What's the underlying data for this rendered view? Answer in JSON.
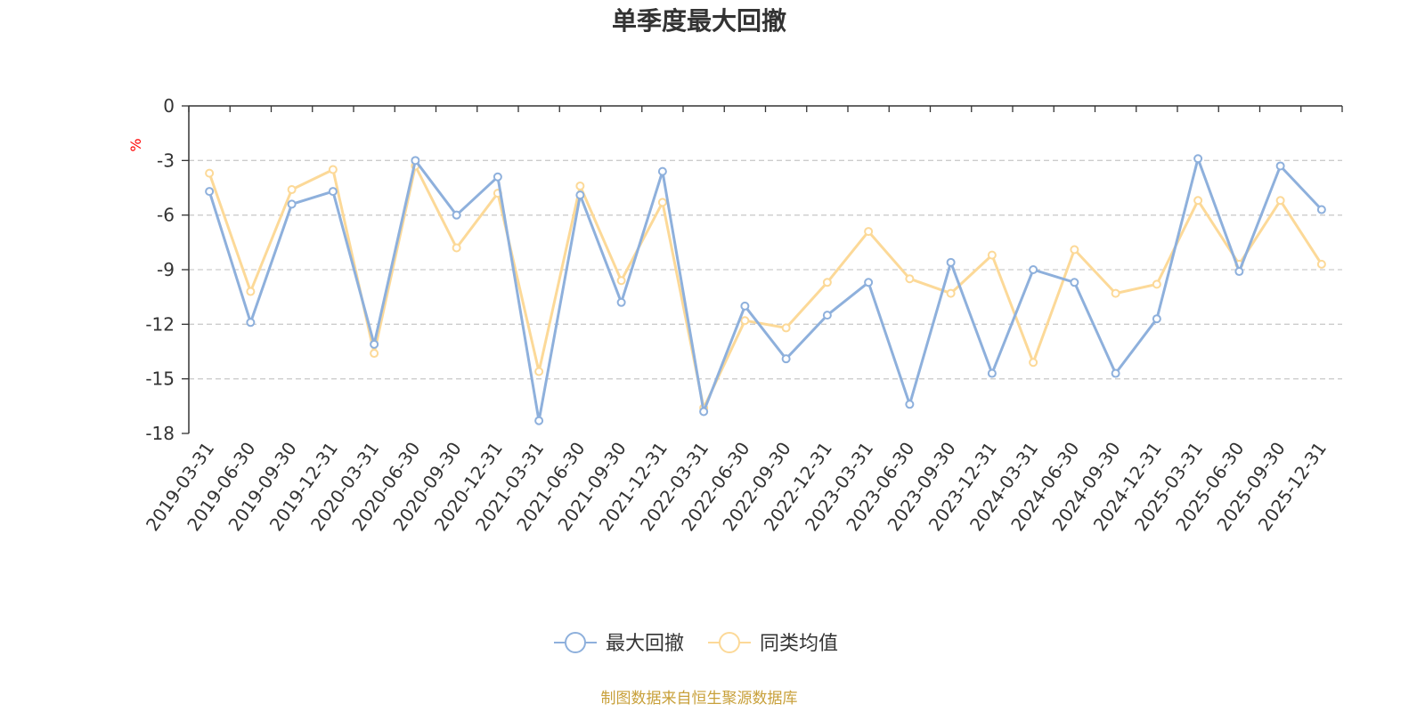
{
  "chart_data": {
    "type": "line",
    "title": "单季度最大回撤",
    "ylabel": "%",
    "ylim": [
      -18,
      0
    ],
    "yticks": [
      0,
      -3,
      -6,
      -9,
      -12,
      -15,
      -18
    ],
    "grid": true,
    "legend_position": "bottom-center",
    "categories": [
      "2019-03-31",
      "2019-06-30",
      "2019-09-30",
      "2019-12-31",
      "2020-03-31",
      "2020-06-30",
      "2020-09-30",
      "2020-12-31",
      "2021-03-31",
      "2021-06-30",
      "2021-09-30",
      "2021-12-31",
      "2022-03-31",
      "2022-06-30",
      "2022-09-30",
      "2022-12-31",
      "2023-03-31",
      "2023-06-30",
      "2023-09-30",
      "2023-12-31",
      "2024-03-31",
      "2024-06-30",
      "2024-09-30",
      "2024-12-31",
      "2025-03-31",
      "2025-06-30",
      "2025-09-30",
      "2025-12-31"
    ],
    "series": [
      {
        "name": "最大回撤",
        "color": "#8eb0dc",
        "values": [
          -4.7,
          -11.9,
          -5.4,
          -4.7,
          -13.1,
          -3.0,
          -6.0,
          -3.9,
          -17.3,
          -4.9,
          -10.8,
          -3.6,
          -16.8,
          -11.0,
          -13.9,
          -11.5,
          -9.7,
          -16.4,
          -8.6,
          -14.7,
          -9.0,
          -9.7,
          -14.7,
          -11.7,
          -2.9,
          -9.1,
          -3.3,
          -5.7
        ]
      },
      {
        "name": "同类均值",
        "color": "#fcd998",
        "values": [
          -3.7,
          -10.2,
          -4.6,
          -3.5,
          -13.6,
          -3.3,
          -7.8,
          -4.8,
          -14.6,
          -4.4,
          -9.6,
          -5.3,
          -16.6,
          -11.8,
          -12.2,
          -9.7,
          -6.9,
          -9.5,
          -10.3,
          -8.2,
          -14.1,
          -7.9,
          -10.3,
          -9.8,
          -5.2,
          -8.7,
          -5.2,
          -8.7
        ]
      }
    ]
  },
  "footer": {
    "source": "制图数据来自恒生聚源数据库"
  }
}
